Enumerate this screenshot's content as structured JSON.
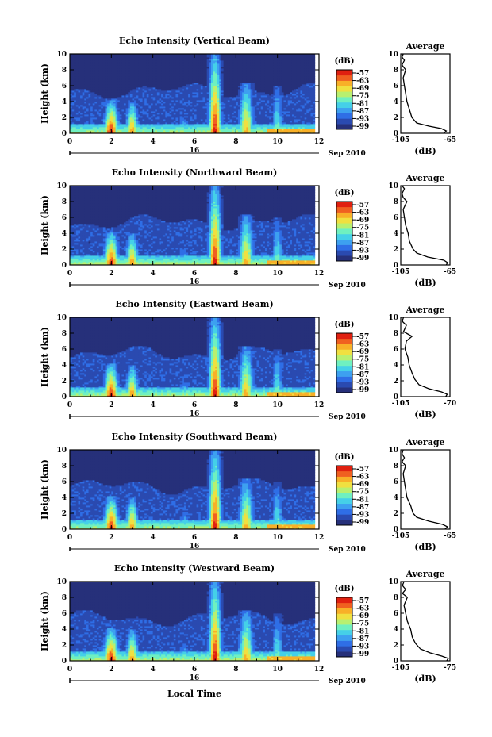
{
  "chart_data": {
    "type": "heatmap",
    "xlabel": "Local Time",
    "date": {
      "day": "16",
      "month_year": "Sep 2010"
    },
    "x_ticks": [
      "0",
      "2",
      "4",
      "6",
      "8",
      "10",
      "12"
    ],
    "xlim": [
      0,
      12
    ],
    "y_ticks": [
      "0",
      "2",
      "4",
      "6",
      "8",
      "10"
    ],
    "ylim": [
      0,
      10
    ],
    "ylabel": "Height (km)",
    "colorbar": {
      "label": "(dB)",
      "ticks": [
        "-57",
        "-63",
        "-69",
        "-75",
        "-81",
        "-87",
        "-93",
        "-99"
      ],
      "colors": [
        "#26307a",
        "#2a4ab0",
        "#2f6ee6",
        "#3da0f0",
        "#45d0e8",
        "#6ff0c0",
        "#b8f070",
        "#f0e040",
        "#f8b028",
        "#f06020",
        "#e02010"
      ]
    },
    "events": [
      {
        "t": 2.0,
        "strength": 1.0,
        "top": 4.2,
        "width": 0.35
      },
      {
        "t": 3.0,
        "strength": 0.85,
        "top": 4.0,
        "width": 0.3
      },
      {
        "t": 7.0,
        "strength": 1.0,
        "top": 10.0,
        "width": 0.3
      },
      {
        "t": 8.5,
        "strength": 0.8,
        "top": 6.5,
        "width": 0.35
      },
      {
        "t": 10.0,
        "strength": 0.55,
        "top": 6.0,
        "width": 0.25
      },
      {
        "t": 5.5,
        "strength": 0.45,
        "top": 2.5,
        "width": 0.3
      }
    ],
    "panels": [
      {
        "title": "Echo Intensity (Vertical Beam)",
        "avg_title": "Average",
        "avg_xlabel": "(dB)",
        "avg_xlim": [
          -105,
          -65
        ],
        "avg_xticks": [
          "-105",
          "-65"
        ],
        "avg_profile": [
          {
            "h": 0.0,
            "db": -70
          },
          {
            "h": 0.3,
            "db": -68
          },
          {
            "h": 0.6,
            "db": -72
          },
          {
            "h": 0.9,
            "db": -82
          },
          {
            "h": 1.3,
            "db": -92
          },
          {
            "h": 2.0,
            "db": -96
          },
          {
            "h": 3.0,
            "db": -98
          },
          {
            "h": 4.0,
            "db": -100
          },
          {
            "h": 5.0,
            "db": -101
          },
          {
            "h": 6.0,
            "db": -102
          },
          {
            "h": 7.0,
            "db": -103
          },
          {
            "h": 8.0,
            "db": -101
          },
          {
            "h": 8.6,
            "db": -104
          },
          {
            "h": 9.2,
            "db": -102
          },
          {
            "h": 9.6,
            "db": -104
          },
          {
            "h": 10.0,
            "db": -103
          }
        ]
      },
      {
        "title": "Echo Intensity (Northward Beam)",
        "avg_title": "Average",
        "avg_xlabel": "(dB)",
        "avg_xlim": [
          -105,
          -65
        ],
        "avg_xticks": [
          "-105",
          "-65"
        ],
        "avg_profile": [
          {
            "h": 0.0,
            "db": -68
          },
          {
            "h": 0.3,
            "db": -67
          },
          {
            "h": 0.6,
            "db": -70
          },
          {
            "h": 1.0,
            "db": -83
          },
          {
            "h": 1.5,
            "db": -92
          },
          {
            "h": 2.0,
            "db": -95
          },
          {
            "h": 3.0,
            "db": -98
          },
          {
            "h": 4.0,
            "db": -99
          },
          {
            "h": 5.0,
            "db": -101
          },
          {
            "h": 6.0,
            "db": -102
          },
          {
            "h": 7.0,
            "db": -103
          },
          {
            "h": 8.0,
            "db": -100
          },
          {
            "h": 8.5,
            "db": -103
          },
          {
            "h": 9.0,
            "db": -104
          },
          {
            "h": 9.6,
            "db": -102
          },
          {
            "h": 10.0,
            "db": -104
          }
        ]
      },
      {
        "title": "Echo Intensity (Eastward Beam)",
        "avg_title": "Average",
        "avg_xlabel": "(dB)",
        "avg_xlim": [
          -105,
          -70
        ],
        "avg_xticks": [
          "-105",
          "-70"
        ],
        "avg_profile": [
          {
            "h": 0.0,
            "db": -73
          },
          {
            "h": 0.3,
            "db": -72
          },
          {
            "h": 0.6,
            "db": -76
          },
          {
            "h": 1.0,
            "db": -85
          },
          {
            "h": 1.5,
            "db": -92
          },
          {
            "h": 2.2,
            "db": -95
          },
          {
            "h": 3.0,
            "db": -97
          },
          {
            "h": 4.0,
            "db": -99
          },
          {
            "h": 5.0,
            "db": -100
          },
          {
            "h": 6.0,
            "db": -102
          },
          {
            "h": 7.0,
            "db": -101
          },
          {
            "h": 7.6,
            "db": -97
          },
          {
            "h": 8.2,
            "db": -103
          },
          {
            "h": 9.0,
            "db": -101
          },
          {
            "h": 9.5,
            "db": -104
          },
          {
            "h": 10.0,
            "db": -103
          }
        ]
      },
      {
        "title": "Echo Intensity (Southward Beam)",
        "avg_title": "Average",
        "avg_xlabel": "(dB)",
        "avg_xlim": [
          -105,
          -65
        ],
        "avg_xticks": [
          "-105",
          "-65"
        ],
        "avg_profile": [
          {
            "h": 0.0,
            "db": -69
          },
          {
            "h": 0.3,
            "db": -67
          },
          {
            "h": 0.6,
            "db": -71
          },
          {
            "h": 1.0,
            "db": -82
          },
          {
            "h": 1.5,
            "db": -92
          },
          {
            "h": 2.0,
            "db": -95
          },
          {
            "h": 3.0,
            "db": -97
          },
          {
            "h": 4.0,
            "db": -100
          },
          {
            "h": 5.0,
            "db": -101
          },
          {
            "h": 6.0,
            "db": -102
          },
          {
            "h": 7.0,
            "db": -103
          },
          {
            "h": 8.0,
            "db": -101
          },
          {
            "h": 8.5,
            "db": -104
          },
          {
            "h": 9.0,
            "db": -102
          },
          {
            "h": 9.5,
            "db": -104
          },
          {
            "h": 10.0,
            "db": -103
          }
        ]
      },
      {
        "title": "Echo Intensity (Westward Beam)",
        "avg_title": "Average",
        "avg_xlabel": "(dB)",
        "avg_xlim": [
          -105,
          -75
        ],
        "avg_xticks": [
          "-105",
          "-75"
        ],
        "avg_profile": [
          {
            "h": 0.0,
            "db": -77
          },
          {
            "h": 0.3,
            "db": -76
          },
          {
            "h": 0.6,
            "db": -80
          },
          {
            "h": 1.0,
            "db": -87
          },
          {
            "h": 1.5,
            "db": -93
          },
          {
            "h": 2.2,
            "db": -96
          },
          {
            "h": 3.0,
            "db": -98
          },
          {
            "h": 4.0,
            "db": -99
          },
          {
            "h": 5.0,
            "db": -101
          },
          {
            "h": 6.0,
            "db": -102
          },
          {
            "h": 7.0,
            "db": -103
          },
          {
            "h": 8.0,
            "db": -101
          },
          {
            "h": 8.5,
            "db": -104
          },
          {
            "h": 9.0,
            "db": -102
          },
          {
            "h": 9.5,
            "db": -104
          },
          {
            "h": 10.0,
            "db": -103
          }
        ]
      }
    ]
  }
}
